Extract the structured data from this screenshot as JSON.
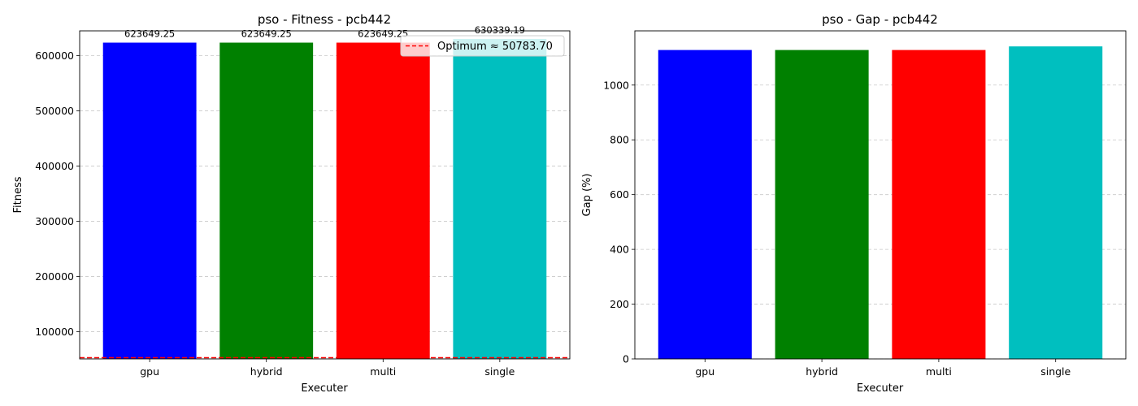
{
  "chart_data": [
    {
      "type": "bar",
      "title": "pso - Fitness - pcb442",
      "xlabel": "Executer",
      "ylabel": "Fitness",
      "categories": [
        "gpu",
        "hybrid",
        "multi",
        "single"
      ],
      "values": [
        623649.25,
        623649.25,
        623649.25,
        630339.19
      ],
      "value_labels": [
        "623649.25",
        "623649.25",
        "623649.25",
        "630339.19"
      ],
      "colors": [
        "#0000ff",
        "#008000",
        "#ff0000",
        "#00bfbf"
      ],
      "ylim": [
        50783.7,
        645000
      ],
      "yticks": [
        100000,
        200000,
        300000,
        400000,
        500000,
        600000
      ],
      "ytick_labels": [
        "100000",
        "200000",
        "300000",
        "400000",
        "500000",
        "600000"
      ],
      "grid": "y-dashed",
      "reference_line": {
        "value": 50783.7,
        "color": "#ff0000",
        "style": "dashed"
      },
      "legend": {
        "position": "top-right",
        "entries": [
          "Optimum ≈ 50783.70"
        ]
      }
    },
    {
      "type": "bar",
      "title": "pso - Gap - pcb442",
      "xlabel": "Executer",
      "ylabel": "Gap (%)",
      "categories": [
        "gpu",
        "hybrid",
        "multi",
        "single"
      ],
      "values": [
        1128.05,
        1128.05,
        1128.05,
        1141.22
      ],
      "colors": [
        "#0000ff",
        "#008000",
        "#ff0000",
        "#00bfbf"
      ],
      "ylim": [
        0,
        1198
      ],
      "yticks": [
        0,
        200,
        400,
        600,
        800,
        1000
      ],
      "ytick_labels": [
        "0",
        "200",
        "400",
        "600",
        "800",
        "1000"
      ],
      "grid": "y-dashed"
    }
  ]
}
